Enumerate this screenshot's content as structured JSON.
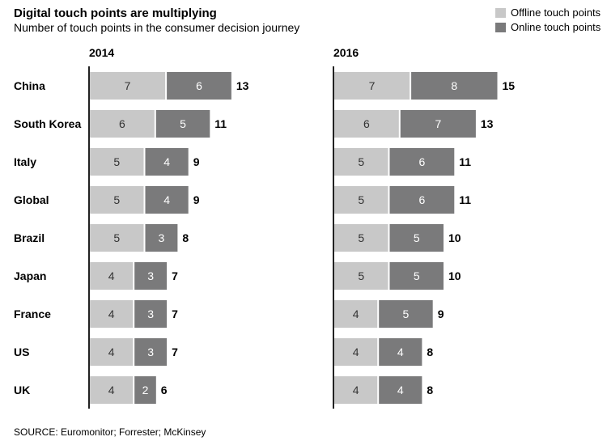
{
  "title": "Digital touch points are multiplying",
  "subtitle": "Number of touch points in the consumer decision journey",
  "source": "SOURCE: Euromonitor; Forrester; McKinsey",
  "colors": {
    "offline": "#c8c8c8",
    "online": "#7a7a7b",
    "online_text": "#ffffff",
    "offline_text": "#333333",
    "axis": "#222222"
  },
  "chart_data": {
    "type": "bar",
    "stacked": true,
    "orientation": "horizontal",
    "title": "Digital touch points are multiplying",
    "subtitle": "Number of touch points in the consumer decision journey",
    "legend": [
      {
        "name": "Offline touch points",
        "color": "#c8c8c8"
      },
      {
        "name": "Online touch points",
        "color": "#7a7a7b"
      }
    ],
    "legend_position": "top-right",
    "panels": [
      {
        "year": "2014",
        "rows": [
          {
            "country": "China",
            "offline": 7,
            "online": 6,
            "total": 13
          },
          {
            "country": "South Korea",
            "offline": 6,
            "online": 5,
            "total": 11
          },
          {
            "country": "Italy",
            "offline": 5,
            "online": 4,
            "total": 9
          },
          {
            "country": "Global",
            "offline": 5,
            "online": 4,
            "total": 9
          },
          {
            "country": "Brazil",
            "offline": 5,
            "online": 3,
            "total": 8
          },
          {
            "country": "Japan",
            "offline": 4,
            "online": 3,
            "total": 7
          },
          {
            "country": "France",
            "offline": 4,
            "online": 3,
            "total": 7
          },
          {
            "country": "US",
            "offline": 4,
            "online": 3,
            "total": 7
          },
          {
            "country": "UK",
            "offline": 4,
            "online": 2,
            "total": 6
          }
        ]
      },
      {
        "year": "2016",
        "rows": [
          {
            "country": "China",
            "offline": 7,
            "online": 8,
            "total": 15
          },
          {
            "country": "South Korea",
            "offline": 6,
            "online": 7,
            "total": 13
          },
          {
            "country": "Italy",
            "offline": 5,
            "online": 6,
            "total": 11
          },
          {
            "country": "Global",
            "offline": 5,
            "online": 6,
            "total": 11
          },
          {
            "country": "Brazil",
            "offline": 5,
            "online": 5,
            "total": 10
          },
          {
            "country": "Japan",
            "offline": 5,
            "online": 5,
            "total": 10
          },
          {
            "country": "France",
            "offline": 4,
            "online": 5,
            "total": 9
          },
          {
            "country": "US",
            "offline": 4,
            "online": 4,
            "total": 8
          },
          {
            "country": "UK",
            "offline": 4,
            "online": 4,
            "total": 8
          }
        ]
      }
    ],
    "source": "SOURCE: Euromonitor; Forrester; McKinsey"
  }
}
